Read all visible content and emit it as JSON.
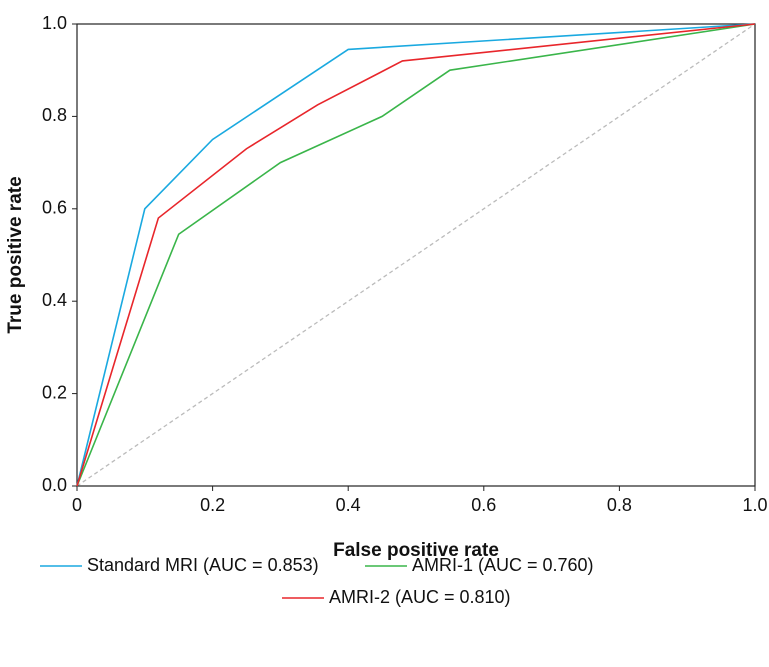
{
  "chart_data": {
    "type": "line",
    "xlabel": "False positive rate",
    "ylabel": "True positive rate",
    "series": [
      {
        "name": "Standard MRI (AUC = 0.853)",
        "color": "#1aa9e0",
        "x": [
          0,
          0.1,
          0.2,
          0.4,
          1
        ],
        "values": [
          0,
          0.6,
          0.75,
          0.945,
          1
        ]
      },
      {
        "name": "AMRI-1 (AUC = 0.760)",
        "color": "#3ab54a",
        "x": [
          0,
          0.15,
          0.3,
          0.45,
          0.55,
          1
        ],
        "values": [
          0,
          0.545,
          0.7,
          0.8,
          0.9,
          1
        ]
      },
      {
        "name": "AMRI-2 (AUC = 0.810)",
        "color": "#e8262b",
        "x": [
          0,
          0.12,
          0.25,
          0.355,
          0.48,
          1
        ],
        "values": [
          0,
          0.58,
          0.73,
          0.825,
          0.92,
          1
        ]
      }
    ],
    "xlim": [
      0,
      1
    ],
    "xticks": [
      0,
      0.2,
      0.4,
      0.6,
      0.8,
      {
        "value": 1,
        "label": "1.0"
      }
    ],
    "ylim": [
      0,
      1
    ],
    "yticks": [
      {
        "value": 0,
        "label": "0.0"
      },
      0.2,
      0.4,
      0.6,
      0.8,
      {
        "value": 1,
        "label": "1.0"
      }
    ]
  }
}
